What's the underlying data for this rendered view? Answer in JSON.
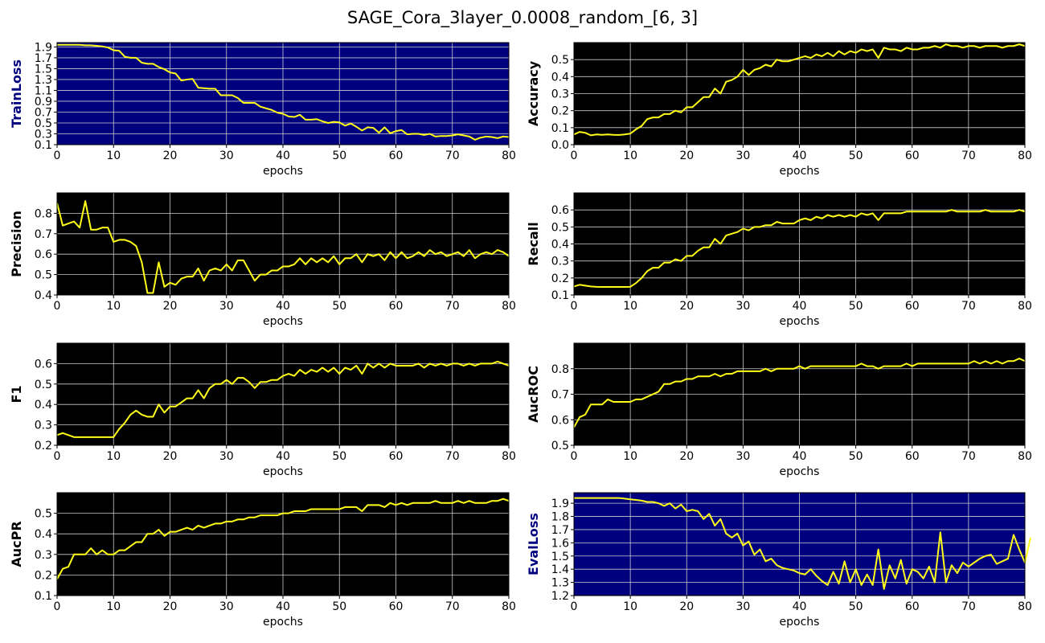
{
  "title": "SAGE_Cora_3layer_0.0008_random_[6, 3]",
  "colors": {
    "line": "#ffff1a",
    "loss_bg": "#00007f",
    "metric_bg": "#000000",
    "grid": "#cccccc",
    "loss_label": "#00007f",
    "metric_label": "#000000"
  },
  "chart_data": [
    {
      "type": "line",
      "name": "TrainLoss",
      "ylabel": "TrainLoss",
      "xlabel": "epochs",
      "bg": "loss",
      "xlim": [
        0,
        80
      ],
      "ylim": [
        0.1,
        1.98
      ],
      "xticks": [
        "0",
        "10",
        "20",
        "30",
        "40",
        "50",
        "60",
        "70",
        "80"
      ],
      "yticks": [
        "0.1",
        "0.3",
        "0.5",
        "0.7",
        "0.9",
        "1.1",
        "1.3",
        "1.5",
        "1.7",
        "1.9"
      ],
      "values": [
        1.94,
        1.94,
        1.94,
        1.94,
        1.94,
        1.93,
        1.93,
        1.92,
        1.91,
        1.89,
        1.84,
        1.83,
        1.72,
        1.7,
        1.7,
        1.61,
        1.59,
        1.59,
        1.53,
        1.49,
        1.43,
        1.41,
        1.28,
        1.3,
        1.31,
        1.15,
        1.14,
        1.13,
        1.13,
        1.01,
        1.01,
        1.01,
        0.96,
        0.87,
        0.87,
        0.87,
        0.8,
        0.77,
        0.74,
        0.69,
        0.67,
        0.62,
        0.61,
        0.65,
        0.56,
        0.56,
        0.57,
        0.53,
        0.5,
        0.52,
        0.51,
        0.45,
        0.49,
        0.43,
        0.36,
        0.42,
        0.41,
        0.32,
        0.42,
        0.31,
        0.35,
        0.37,
        0.29,
        0.3,
        0.3,
        0.28,
        0.3,
        0.25,
        0.26,
        0.26,
        0.27,
        0.29,
        0.27,
        0.25,
        0.19,
        0.23,
        0.25,
        0.24,
        0.22,
        0.25,
        0.24
      ]
    },
    {
      "type": "line",
      "name": "Accuracy",
      "ylabel": "Accuracy",
      "xlabel": "epochs",
      "bg": "metric",
      "xlim": [
        0,
        80
      ],
      "ylim": [
        0.0,
        0.6
      ],
      "xticks": [
        "0",
        "10",
        "20",
        "30",
        "40",
        "50",
        "60",
        "70",
        "80"
      ],
      "yticks": [
        "0.0",
        "0.1",
        "0.2",
        "0.3",
        "0.4",
        "0.5"
      ],
      "values": [
        0.06,
        0.075,
        0.07,
        0.055,
        0.06,
        0.058,
        0.06,
        0.058,
        0.057,
        0.06,
        0.065,
        0.09,
        0.11,
        0.15,
        0.16,
        0.16,
        0.18,
        0.18,
        0.2,
        0.19,
        0.22,
        0.22,
        0.25,
        0.28,
        0.28,
        0.33,
        0.3,
        0.37,
        0.38,
        0.4,
        0.44,
        0.41,
        0.44,
        0.45,
        0.47,
        0.46,
        0.5,
        0.49,
        0.49,
        0.5,
        0.51,
        0.52,
        0.51,
        0.53,
        0.52,
        0.54,
        0.52,
        0.55,
        0.53,
        0.55,
        0.54,
        0.56,
        0.55,
        0.56,
        0.51,
        0.57,
        0.56,
        0.56,
        0.55,
        0.57,
        0.56,
        0.56,
        0.57,
        0.57,
        0.58,
        0.57,
        0.59,
        0.58,
        0.58,
        0.57,
        0.58,
        0.58,
        0.57,
        0.58,
        0.58,
        0.58,
        0.57,
        0.58,
        0.58,
        0.59,
        0.58
      ]
    },
    {
      "type": "line",
      "name": "Precision",
      "ylabel": "Precision",
      "xlabel": "epochs",
      "bg": "metric",
      "xlim": [
        0,
        80
      ],
      "ylim": [
        0.4,
        0.9
      ],
      "xticks": [
        "0",
        "10",
        "20",
        "30",
        "40",
        "50",
        "60",
        "70",
        "80"
      ],
      "yticks": [
        "0.4",
        "0.5",
        "0.6",
        "0.7",
        "0.8"
      ],
      "values": [
        0.85,
        0.74,
        0.75,
        0.76,
        0.73,
        0.86,
        0.72,
        0.72,
        0.73,
        0.73,
        0.66,
        0.67,
        0.67,
        0.66,
        0.64,
        0.56,
        0.41,
        0.41,
        0.56,
        0.44,
        0.46,
        0.45,
        0.48,
        0.49,
        0.49,
        0.53,
        0.47,
        0.52,
        0.53,
        0.52,
        0.55,
        0.52,
        0.57,
        0.57,
        0.52,
        0.47,
        0.5,
        0.5,
        0.52,
        0.52,
        0.54,
        0.54,
        0.55,
        0.58,
        0.55,
        0.58,
        0.56,
        0.58,
        0.56,
        0.59,
        0.55,
        0.58,
        0.58,
        0.6,
        0.56,
        0.6,
        0.59,
        0.6,
        0.57,
        0.61,
        0.58,
        0.61,
        0.58,
        0.59,
        0.61,
        0.59,
        0.62,
        0.6,
        0.61,
        0.59,
        0.6,
        0.61,
        0.59,
        0.62,
        0.58,
        0.6,
        0.61,
        0.6,
        0.62,
        0.61,
        0.59
      ]
    },
    {
      "type": "line",
      "name": "Recall",
      "ylabel": "Recall",
      "xlabel": "epochs",
      "bg": "metric",
      "xlim": [
        0,
        80
      ],
      "ylim": [
        0.1,
        0.7
      ],
      "xticks": [
        "0",
        "10",
        "20",
        "30",
        "40",
        "50",
        "60",
        "70",
        "80"
      ],
      "yticks": [
        "0.1",
        "0.2",
        "0.3",
        "0.4",
        "0.5",
        "0.6"
      ],
      "values": [
        0.15,
        0.16,
        0.155,
        0.15,
        0.148,
        0.147,
        0.147,
        0.147,
        0.147,
        0.147,
        0.148,
        0.17,
        0.2,
        0.24,
        0.26,
        0.26,
        0.29,
        0.29,
        0.31,
        0.3,
        0.33,
        0.33,
        0.36,
        0.38,
        0.38,
        0.43,
        0.4,
        0.45,
        0.46,
        0.47,
        0.49,
        0.48,
        0.5,
        0.5,
        0.51,
        0.51,
        0.53,
        0.52,
        0.52,
        0.52,
        0.54,
        0.55,
        0.54,
        0.56,
        0.55,
        0.57,
        0.56,
        0.57,
        0.56,
        0.57,
        0.56,
        0.58,
        0.57,
        0.58,
        0.54,
        0.58,
        0.58,
        0.58,
        0.58,
        0.59,
        0.59,
        0.59,
        0.59,
        0.59,
        0.59,
        0.59,
        0.59,
        0.6,
        0.59,
        0.59,
        0.59,
        0.59,
        0.59,
        0.6,
        0.59,
        0.59,
        0.59,
        0.59,
        0.59,
        0.6,
        0.59
      ]
    },
    {
      "type": "line",
      "name": "F1",
      "ylabel": "F1",
      "xlabel": "epochs",
      "bg": "metric",
      "xlim": [
        0,
        80
      ],
      "ylim": [
        0.2,
        0.7
      ],
      "xticks": [
        "0",
        "10",
        "20",
        "30",
        "40",
        "50",
        "60",
        "70",
        "80"
      ],
      "yticks": [
        "0.2",
        "0.3",
        "0.4",
        "0.5",
        "0.6"
      ],
      "values": [
        0.25,
        0.26,
        0.25,
        0.24,
        0.24,
        0.24,
        0.24,
        0.24,
        0.24,
        0.24,
        0.24,
        0.28,
        0.31,
        0.35,
        0.37,
        0.35,
        0.34,
        0.34,
        0.4,
        0.36,
        0.39,
        0.39,
        0.41,
        0.43,
        0.43,
        0.47,
        0.43,
        0.48,
        0.5,
        0.5,
        0.52,
        0.5,
        0.53,
        0.53,
        0.51,
        0.48,
        0.51,
        0.51,
        0.52,
        0.52,
        0.54,
        0.55,
        0.54,
        0.57,
        0.55,
        0.57,
        0.56,
        0.58,
        0.56,
        0.58,
        0.55,
        0.58,
        0.57,
        0.59,
        0.55,
        0.6,
        0.58,
        0.6,
        0.58,
        0.6,
        0.59,
        0.59,
        0.59,
        0.59,
        0.6,
        0.58,
        0.6,
        0.59,
        0.6,
        0.59,
        0.6,
        0.6,
        0.59,
        0.6,
        0.59,
        0.6,
        0.6,
        0.6,
        0.61,
        0.6,
        0.59
      ]
    },
    {
      "type": "line",
      "name": "AucROC",
      "ylabel": "AucROC",
      "xlabel": "epochs",
      "bg": "metric",
      "xlim": [
        0,
        80
      ],
      "ylim": [
        0.5,
        0.9
      ],
      "xticks": [
        "0",
        "10",
        "20",
        "30",
        "40",
        "50",
        "60",
        "70",
        "80"
      ],
      "yticks": [
        "0.5",
        "0.6",
        "0.7",
        "0.8"
      ],
      "values": [
        0.57,
        0.61,
        0.62,
        0.66,
        0.66,
        0.66,
        0.68,
        0.67,
        0.67,
        0.67,
        0.67,
        0.68,
        0.68,
        0.69,
        0.7,
        0.71,
        0.74,
        0.74,
        0.75,
        0.75,
        0.76,
        0.76,
        0.77,
        0.77,
        0.77,
        0.78,
        0.77,
        0.78,
        0.78,
        0.79,
        0.79,
        0.79,
        0.79,
        0.79,
        0.8,
        0.79,
        0.8,
        0.8,
        0.8,
        0.8,
        0.81,
        0.8,
        0.81,
        0.81,
        0.81,
        0.81,
        0.81,
        0.81,
        0.81,
        0.81,
        0.81,
        0.82,
        0.81,
        0.81,
        0.8,
        0.81,
        0.81,
        0.81,
        0.81,
        0.82,
        0.81,
        0.82,
        0.82,
        0.82,
        0.82,
        0.82,
        0.82,
        0.82,
        0.82,
        0.82,
        0.82,
        0.83,
        0.82,
        0.83,
        0.82,
        0.83,
        0.82,
        0.83,
        0.83,
        0.84,
        0.83
      ]
    },
    {
      "type": "line",
      "name": "AucPR",
      "ylabel": "AucPR",
      "xlabel": "epochs",
      "bg": "metric",
      "xlim": [
        0,
        80
      ],
      "ylim": [
        0.1,
        0.6
      ],
      "xticks": [
        "0",
        "10",
        "20",
        "30",
        "40",
        "50",
        "60",
        "70",
        "80"
      ],
      "yticks": [
        "0.1",
        "0.2",
        "0.3",
        "0.4",
        "0.5"
      ],
      "values": [
        0.18,
        0.23,
        0.24,
        0.3,
        0.3,
        0.3,
        0.33,
        0.3,
        0.32,
        0.3,
        0.3,
        0.32,
        0.32,
        0.34,
        0.36,
        0.36,
        0.4,
        0.4,
        0.42,
        0.39,
        0.41,
        0.41,
        0.42,
        0.43,
        0.42,
        0.44,
        0.43,
        0.44,
        0.45,
        0.45,
        0.46,
        0.46,
        0.47,
        0.47,
        0.48,
        0.48,
        0.49,
        0.49,
        0.49,
        0.49,
        0.5,
        0.5,
        0.51,
        0.51,
        0.51,
        0.52,
        0.52,
        0.52,
        0.52,
        0.52,
        0.52,
        0.53,
        0.53,
        0.53,
        0.51,
        0.54,
        0.54,
        0.54,
        0.53,
        0.55,
        0.54,
        0.55,
        0.54,
        0.55,
        0.55,
        0.55,
        0.55,
        0.56,
        0.55,
        0.55,
        0.55,
        0.56,
        0.55,
        0.56,
        0.55,
        0.55,
        0.55,
        0.56,
        0.56,
        0.57,
        0.56
      ]
    },
    {
      "type": "line",
      "name": "EvalLoss",
      "ylabel": "EvalLoss",
      "xlabel": "epochs",
      "bg": "loss",
      "xlim": [
        0,
        80
      ],
      "ylim": [
        1.2,
        1.98
      ],
      "xticks": [
        "0",
        "10",
        "20",
        "30",
        "40",
        "50",
        "60",
        "70",
        "80"
      ],
      "yticks": [
        "1.2",
        "1.3",
        "1.4",
        "1.5",
        "1.6",
        "1.7",
        "1.8",
        "1.9"
      ],
      "values": [
        1.94,
        1.94,
        1.94,
        1.94,
        1.94,
        1.94,
        1.94,
        1.94,
        1.94,
        1.935,
        1.93,
        1.925,
        1.92,
        1.91,
        1.91,
        1.9,
        1.88,
        1.9,
        1.86,
        1.89,
        1.84,
        1.85,
        1.84,
        1.78,
        1.82,
        1.73,
        1.78,
        1.67,
        1.64,
        1.67,
        1.58,
        1.61,
        1.51,
        1.55,
        1.46,
        1.48,
        1.43,
        1.41,
        1.4,
        1.39,
        1.37,
        1.36,
        1.4,
        1.35,
        1.31,
        1.28,
        1.38,
        1.29,
        1.46,
        1.3,
        1.4,
        1.28,
        1.36,
        1.28,
        1.55,
        1.25,
        1.43,
        1.33,
        1.47,
        1.29,
        1.4,
        1.38,
        1.33,
        1.42,
        1.3,
        1.68,
        1.3,
        1.43,
        1.37,
        1.45,
        1.42,
        1.45,
        1.48,
        1.5,
        1.51,
        1.44,
        1.46,
        1.48,
        1.66,
        1.55,
        1.45,
        1.64
      ]
    }
  ]
}
